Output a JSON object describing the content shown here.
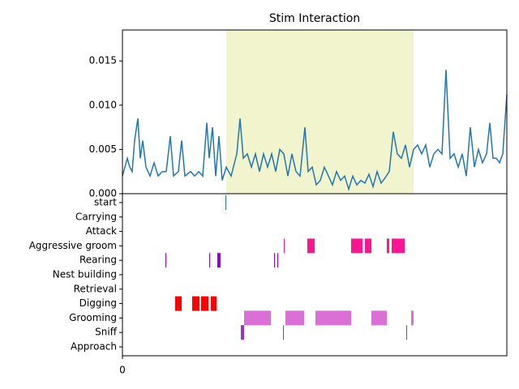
{
  "chart_data": [
    {
      "type": "line",
      "title": "Stim Interaction",
      "x": [
        0,
        6,
        9,
        12,
        15,
        19,
        22,
        25,
        29,
        34,
        39,
        44,
        49,
        54,
        59,
        63,
        69,
        73,
        77,
        84,
        89,
        94,
        99,
        104,
        107,
        111,
        115,
        119,
        123,
        128,
        134,
        141,
        145,
        149,
        154,
        159,
        164,
        169,
        174,
        179,
        184,
        189,
        194,
        199,
        204,
        209,
        214,
        219,
        225,
        229,
        234,
        239,
        244,
        249,
        254,
        259,
        264,
        269,
        274,
        279,
        284,
        289,
        294,
        299,
        304,
        309,
        314,
        319,
        324,
        329,
        334,
        339,
        344,
        349,
        354,
        359,
        364,
        369,
        374,
        379,
        384,
        389,
        394,
        399,
        404,
        409,
        414,
        419,
        424,
        429,
        434,
        439,
        444,
        449,
        453,
        457,
        461,
        465,
        469,
        474
      ],
      "values": [
        0.002,
        0.004,
        0.003,
        0.0025,
        0.006,
        0.0085,
        0.004,
        0.006,
        0.003,
        0.002,
        0.0035,
        0.002,
        0.0025,
        0.0025,
        0.0065,
        0.002,
        0.0025,
        0.006,
        0.002,
        0.0025,
        0.002,
        0.0025,
        0.002,
        0.008,
        0.004,
        0.0075,
        0.002,
        0.0065,
        0.0015,
        0.003,
        0.002,
        0.0045,
        0.0085,
        0.004,
        0.0045,
        0.003,
        0.0045,
        0.0025,
        0.0045,
        0.003,
        0.0045,
        0.0025,
        0.005,
        0.0045,
        0.002,
        0.0045,
        0.0025,
        0.002,
        0.0075,
        0.0025,
        0.003,
        0.001,
        0.0015,
        0.003,
        0.002,
        0.001,
        0.0025,
        0.0015,
        0.002,
        0.0005,
        0.002,
        0.001,
        0.0015,
        0.0012,
        0.0022,
        0.0008,
        0.0025,
        0.0012,
        0.0018,
        0.0025,
        0.007,
        0.0045,
        0.004,
        0.0055,
        0.003,
        0.005,
        0.0055,
        0.0045,
        0.0055,
        0.003,
        0.0045,
        0.005,
        0.0045,
        0.014,
        0.004,
        0.0045,
        0.003,
        0.0045,
        0.002,
        0.0075,
        0.003,
        0.005,
        0.0035,
        0.0045,
        0.008,
        0.004,
        0.004,
        0.0035,
        0.0045,
        0.0112
      ],
      "color": "#1f77b4",
      "span": [
        128,
        359
      ],
      "span_color": "#f1f4cc",
      "xlim": [
        0,
        474
      ],
      "ylim": [
        0,
        0.0185
      ],
      "yticks": [
        {
          "value": 0,
          "label": "0.000"
        },
        {
          "value": 0.005,
          "label": "0.005"
        },
        {
          "value": 0.01,
          "label": "0.010"
        },
        {
          "value": 0.015,
          "label": "0.015"
        }
      ]
    },
    {
      "type": "event",
      "rows": [
        {
          "label": "Approach",
          "intervals": []
        },
        {
          "label": "Sniff",
          "color": "#9932cc",
          "intervals": [
            [
              146,
              150
            ],
            [
              198,
              199
            ],
            [
              350,
              351
            ]
          ]
        },
        {
          "label": "Grooming",
          "color": "#da70d6",
          "intervals": [
            [
              150,
              183
            ],
            [
              201,
              224
            ],
            [
              238,
              282
            ],
            [
              307,
              326
            ],
            [
              356,
              359
            ]
          ]
        },
        {
          "label": "Digging",
          "color": "#ff0000",
          "intervals": [
            [
              65,
              73
            ],
            [
              86,
              95
            ],
            [
              97,
              106
            ],
            [
              109,
              116
            ]
          ]
        },
        {
          "label": "Retrieval",
          "intervals": []
        },
        {
          "label": "Nest building",
          "intervals": []
        },
        {
          "label": "Rearing",
          "color": "#9400d3",
          "intervals": [
            [
              53,
              54
            ],
            [
              107,
              108
            ],
            [
              117,
              121
            ],
            [
              187,
              188
            ],
            [
              191,
              192
            ]
          ]
        },
        {
          "label": "Aggressive groom",
          "color": "#ff1493",
          "intervals": [
            [
              199,
              200
            ],
            [
              228,
              237
            ],
            [
              282,
              296
            ],
            [
              299,
              307
            ],
            [
              326,
              329
            ],
            [
              332,
              348
            ]
          ]
        },
        {
          "label": "Attack",
          "intervals": []
        },
        {
          "label": "Carrying",
          "intervals": []
        },
        {
          "label": "start",
          "color": "#1f77b4",
          "intervals": [
            [
              127,
              128
            ]
          ]
        }
      ],
      "xlim": [
        0,
        474
      ],
      "xticks": [
        0
      ]
    }
  ]
}
